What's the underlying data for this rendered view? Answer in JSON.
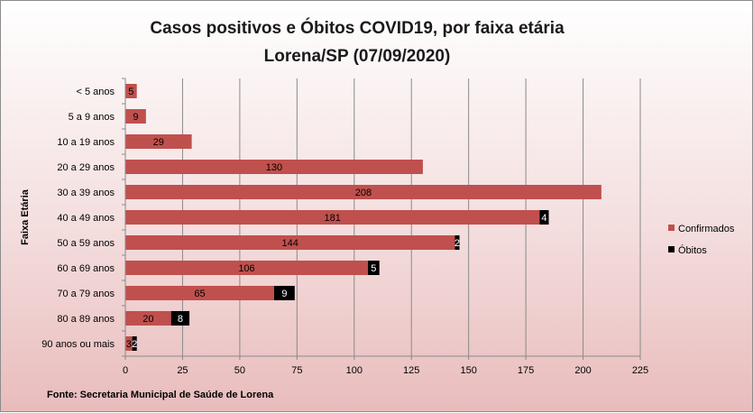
{
  "chart_data": {
    "type": "bar",
    "orientation": "horizontal",
    "stacked": true,
    "title": "Casos positivos e Óbitos COVID19, por faixa etária",
    "subtitle": "Lorena/SP (07/09/2020)",
    "ylabel": "Faixa Etária",
    "xlabel": "",
    "xlim": [
      0,
      225
    ],
    "xticks": [
      "0",
      "25",
      "50",
      "75",
      "100",
      "125",
      "150",
      "175",
      "200",
      "225"
    ],
    "categories": [
      "< 5 anos",
      "5 a 9 anos",
      "10 a 19 anos",
      "20 a 29 anos",
      "30 a 39 anos",
      "40 a 49 anos",
      "50 a 59 anos",
      "60 a 69 anos",
      "70 a 79 anos",
      "80 a 89 anos",
      "90 anos ou mais"
    ],
    "series": [
      {
        "name": "Confirmados",
        "color": "#c0504d",
        "values": [
          5,
          9,
          29,
          130,
          208,
          181,
          144,
          106,
          65,
          20,
          3
        ]
      },
      {
        "name": "Óbitos",
        "color": "#000000",
        "values": [
          null,
          null,
          null,
          null,
          null,
          4,
          2,
          5,
          9,
          8,
          2
        ]
      }
    ],
    "grid": true,
    "legend_position": "right",
    "source": "Fonte: Secretaria Municipal  de Saúde de Lorena"
  }
}
